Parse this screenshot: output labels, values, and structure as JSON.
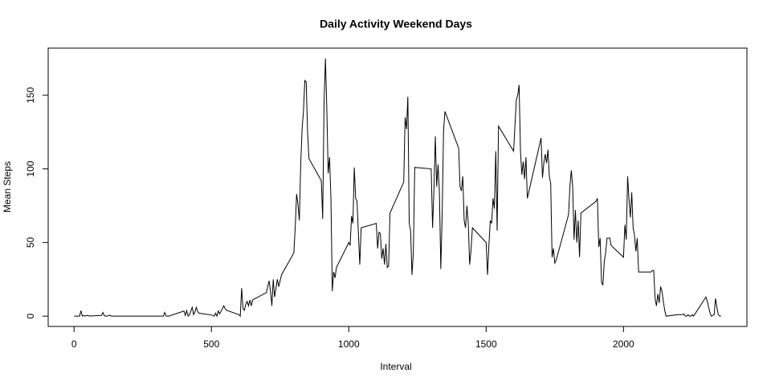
{
  "chart_data": {
    "type": "line",
    "title": "Daily Activity Weekend Days",
    "x_label": "Interval",
    "y_label": "Mean Steps",
    "x": [
      0,
      5,
      10,
      15,
      20,
      25,
      30,
      35,
      40,
      45,
      50,
      55,
      100,
      105,
      110,
      115,
      120,
      130,
      135,
      140,
      150,
      200,
      300,
      325,
      330,
      335,
      345,
      400,
      405,
      410,
      415,
      420,
      430,
      435,
      440,
      445,
      450,
      455,
      500,
      510,
      515,
      520,
      525,
      530,
      545,
      550,
      555,
      600,
      605,
      610,
      615,
      620,
      625,
      630,
      635,
      640,
      645,
      650,
      700,
      705,
      710,
      715,
      720,
      725,
      730,
      735,
      740,
      745,
      750,
      755,
      800,
      805,
      810,
      815,
      820,
      825,
      830,
      835,
      840,
      845,
      850,
      855,
      900,
      905,
      910,
      915,
      920,
      925,
      930,
      935,
      940,
      945,
      950,
      955,
      1000,
      1005,
      1010,
      1015,
      1020,
      1025,
      1030,
      1035,
      1040,
      1045,
      1100,
      1105,
      1110,
      1115,
      1120,
      1125,
      1130,
      1135,
      1140,
      1145,
      1150,
      1200,
      1205,
      1210,
      1215,
      1220,
      1225,
      1230,
      1235,
      1240,
      1300,
      1305,
      1310,
      1315,
      1320,
      1325,
      1330,
      1335,
      1340,
      1345,
      1350,
      1400,
      1405,
      1410,
      1415,
      1420,
      1425,
      1430,
      1435,
      1440,
      1445,
      1450,
      1500,
      1505,
      1510,
      1515,
      1520,
      1525,
      1530,
      1535,
      1540,
      1545,
      1600,
      1605,
      1610,
      1615,
      1620,
      1625,
      1630,
      1635,
      1640,
      1645,
      1650,
      1700,
      1705,
      1710,
      1715,
      1720,
      1725,
      1730,
      1735,
      1740,
      1745,
      1750,
      1755,
      1800,
      1805,
      1810,
      1815,
      1820,
      1825,
      1830,
      1835,
      1840,
      1845,
      1900,
      1905,
      1910,
      1915,
      1920,
      1925,
      1930,
      1935,
      1940,
      1945,
      1950,
      1955,
      2000,
      2005,
      2010,
      2015,
      2020,
      2025,
      2030,
      2035,
      2040,
      2045,
      2050,
      2055,
      2100,
      2105,
      2110,
      2115,
      2120,
      2125,
      2130,
      2135,
      2140,
      2145,
      2150,
      2155,
      2200,
      2205,
      2210,
      2215,
      2220,
      2225,
      2230,
      2235,
      2240,
      2245,
      2250,
      2255,
      2300,
      2305,
      2310,
      2315,
      2320,
      2325,
      2330,
      2335,
      2340,
      2345,
      2350,
      2355
    ],
    "series": [
      {
        "color": "#000000",
        "values": [
          0,
          0,
          0,
          0,
          0,
          3.7,
          0,
          0.5,
          0,
          0.4,
          0.5,
          0.1,
          0.5,
          2.5,
          0.3,
          0,
          0,
          0.6,
          0.1,
          0,
          0,
          0,
          0,
          0,
          2.5,
          0,
          0,
          3.5,
          0.5,
          3.8,
          0,
          0.8,
          6,
          1,
          3,
          6,
          3,
          2,
          0.8,
          0,
          2,
          0,
          3.5,
          1.5,
          7,
          5,
          4,
          1,
          0,
          19,
          5,
          4,
          8,
          10,
          7,
          11,
          7,
          11,
          16,
          20,
          24,
          17,
          7,
          25,
          13,
          19,
          25,
          20,
          24,
          28,
          43,
          60,
          83,
          76,
          65,
          103,
          127,
          139,
          160,
          159,
          125,
          107,
          92,
          66,
          145,
          175,
          141,
          97,
          108,
          80,
          17,
          30,
          26,
          33,
          50,
          48,
          68,
          63,
          101,
          80,
          78,
          56,
          35,
          60,
          63,
          46,
          57,
          56,
          39,
          46,
          35,
          49,
          33,
          34,
          70,
          91,
          135,
          127,
          149,
          63,
          58,
          28,
          43,
          101,
          100,
          60,
          86,
          122,
          88,
          103,
          83,
          32,
          70,
          126,
          139,
          114,
          88,
          85,
          95,
          65,
          60,
          75,
          63,
          35,
          45,
          60,
          50,
          28,
          48,
          65,
          63,
          80,
          73,
          112,
          58,
          129,
          112,
          130,
          147,
          150,
          157,
          112,
          96,
          105,
          93,
          108,
          80,
          121,
          94,
          104,
          110,
          104,
          113,
          95,
          90,
          40,
          46,
          36,
          38,
          69,
          88,
          99,
          88,
          52,
          72,
          50,
          65,
          40,
          70,
          78,
          80,
          47,
          53,
          23,
          21,
          37,
          43,
          53,
          53,
          53,
          48,
          40,
          62,
          52,
          95,
          79,
          67,
          84,
          60,
          55,
          44,
          53,
          30,
          30,
          31,
          31,
          12,
          7,
          15,
          9,
          20,
          17,
          10,
          4,
          0,
          1,
          1,
          1,
          1,
          1.5,
          0,
          0,
          1,
          0,
          0,
          1,
          0,
          13,
          10,
          6,
          2,
          0,
          0.5,
          1,
          12,
          6,
          1,
          0,
          0
        ]
      }
    ],
    "xlim": [
      -94.2,
      2449.2
    ],
    "ylim": [
      -7,
      182
    ],
    "xticks": [
      0,
      500,
      1000,
      1500,
      2000
    ],
    "yticks": [
      0,
      50,
      100,
      150
    ]
  }
}
